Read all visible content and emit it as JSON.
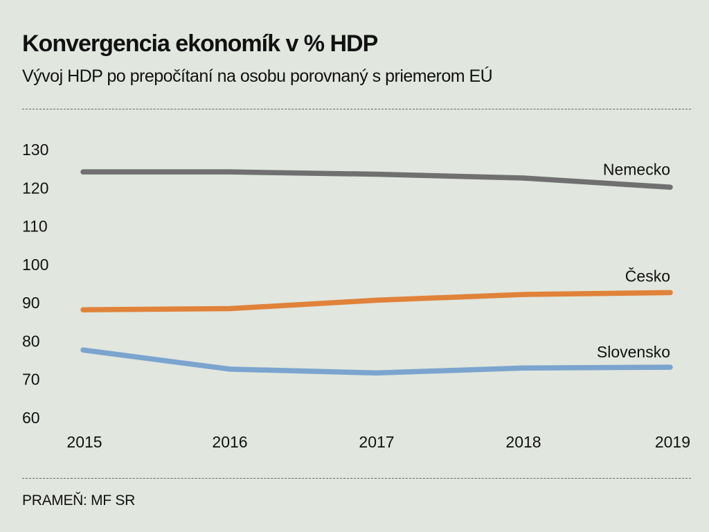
{
  "header": {
    "title": "Konvergencia ekonomík v % HDP",
    "subtitle": "Vývoj HDP po prepočítaní na osobu porovnaný s priemerom EÚ"
  },
  "footer": {
    "source": "PRAMEŇ: MF SR"
  },
  "colors": {
    "background": "#e1e6de",
    "Nemecko": "#707070",
    "Česko": "#e0823a",
    "Slovensko": "#7ba4cf"
  },
  "chart_data": {
    "type": "line",
    "title": "Konvergencia ekonomík v % HDP",
    "subtitle": "Vývoj HDP po prepočítaní na osobu porovnaný s priemerom EÚ",
    "x": [
      "2015",
      "2016",
      "2017",
      "2018",
      "2019"
    ],
    "xlabel": "",
    "ylabel": "",
    "ylim": [
      60,
      130
    ],
    "yticks": [
      130,
      120,
      110,
      100,
      90,
      80,
      70,
      60
    ],
    "grid": false,
    "legend": "inline labels at right end of lines",
    "series": [
      {
        "name": "Nemecko",
        "values": [
          124,
          124,
          123.4,
          122.4,
          120
        ]
      },
      {
        "name": "Česko",
        "values": [
          88,
          88.3,
          90.5,
          92,
          92.5
        ]
      },
      {
        "name": "Slovensko",
        "values": [
          77.5,
          72.5,
          71.5,
          72.8,
          73
        ]
      }
    ]
  }
}
